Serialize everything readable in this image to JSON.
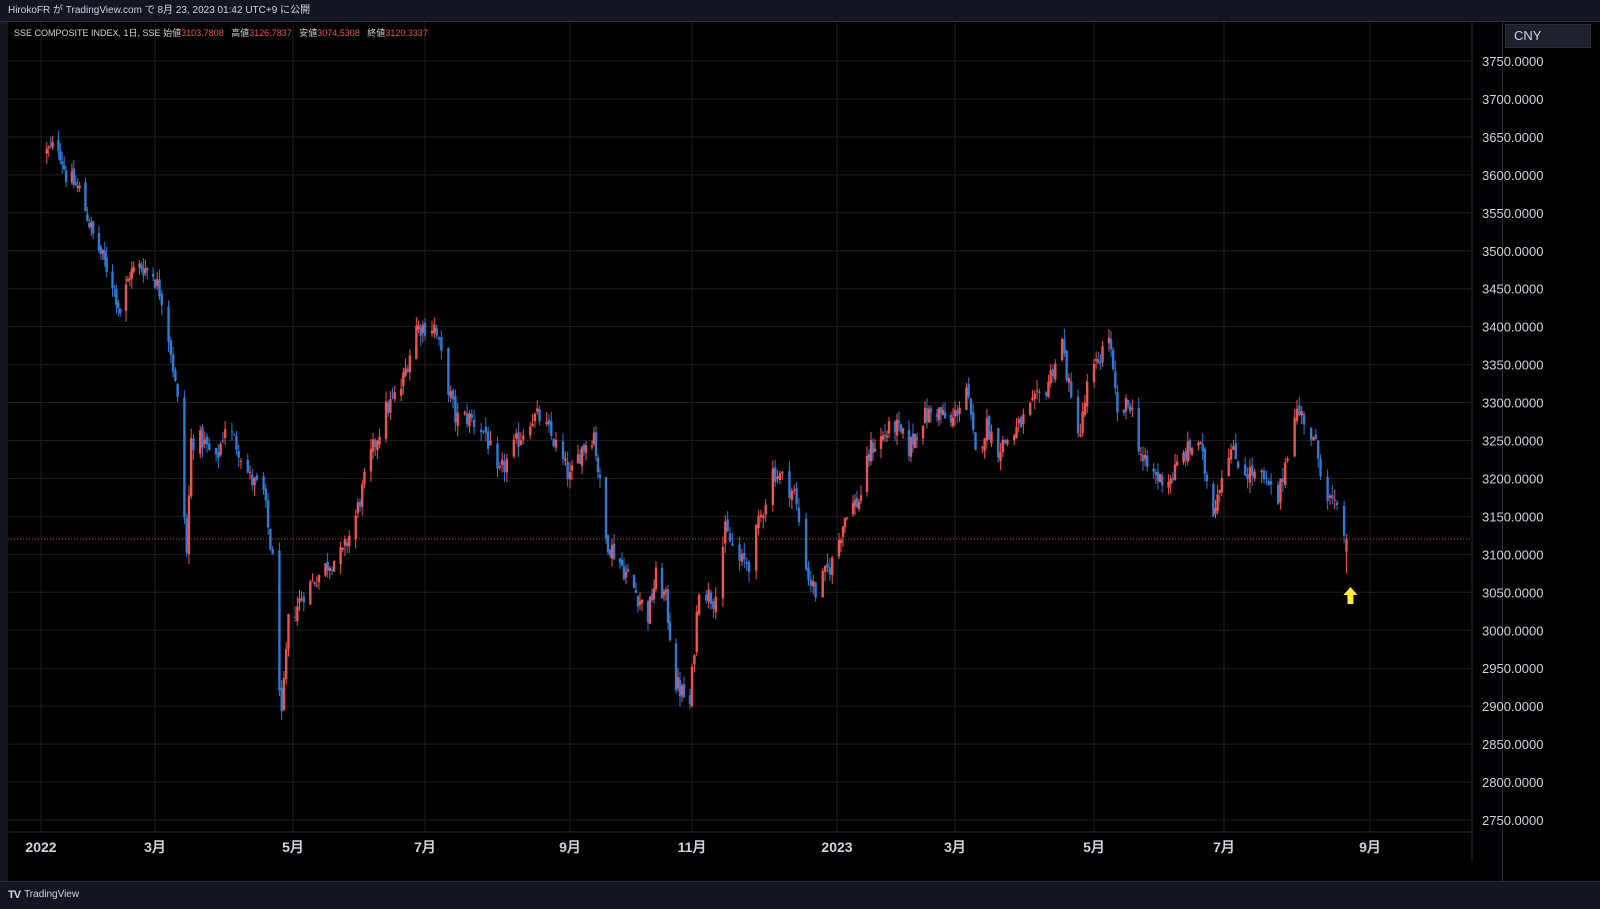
{
  "header": {
    "publish_line": "HirokoFR が TradingView.com で 8月 23, 2023 01:42 UTC+9 に公開"
  },
  "legend": {
    "symbol": "SSE COMPOSITE INDEX, 1日, SSE",
    "open_label": "始値",
    "open_value": "3103.7808",
    "high_label": "高値",
    "high_value": "3126.7837",
    "low_label": "安値",
    "low_value": "3074.5308",
    "close_label": "終値",
    "close_value": "3120.3337"
  },
  "currency_button": "CNY",
  "footer": {
    "brand": "TradingView",
    "brand_mark": "TV"
  },
  "colors": {
    "up": "#ef5350",
    "down": "#2f7bd6",
    "background": "#000000",
    "grid": "#1c1f27",
    "last_price_line": "#ef5350",
    "marker": "#ffeb3b"
  },
  "chart_data": {
    "type": "candlestick",
    "ylim": [
      2720,
      3780
    ],
    "price_ticks": [
      "3750.0000",
      "3700.0000",
      "3650.0000",
      "3600.0000",
      "3550.0000",
      "3500.0000",
      "3450.0000",
      "3400.0000",
      "3350.0000",
      "3300.0000",
      "3250.0000",
      "3200.0000",
      "3150.0000",
      "3100.0000",
      "3050.0000",
      "3000.0000",
      "2950.0000",
      "2900.0000",
      "2850.0000",
      "2800.0000",
      "2750.0000"
    ],
    "time_ticks": [
      "2022",
      "3月",
      "5月",
      "7月",
      "9月",
      "11月",
      "2023",
      "3月",
      "5月",
      "7月",
      "9月"
    ],
    "last_close": 3120.3337,
    "marker": "up-arrow-below-last-bar",
    "path": [
      [
        "2022-01-04",
        3630
      ],
      [
        "2022-01-10",
        3640
      ],
      [
        "2022-01-14",
        3600
      ],
      [
        "2022-01-21",
        3580
      ],
      [
        "2022-01-28",
        3520
      ],
      [
        "2022-02-07",
        3460
      ],
      [
        "2022-02-11",
        3420
      ],
      [
        "2022-02-16",
        3470
      ],
      [
        "2022-02-22",
        3480
      ],
      [
        "2022-02-28",
        3470
      ],
      [
        "2022-03-04",
        3440
      ],
      [
        "2022-03-08",
        3370
      ],
      [
        "2022-03-11",
        3300
      ],
      [
        "2022-03-15",
        3100
      ],
      [
        "2022-03-17",
        3250
      ],
      [
        "2022-03-22",
        3250
      ],
      [
        "2022-03-28",
        3220
      ],
      [
        "2022-04-01",
        3270
      ],
      [
        "2022-04-07",
        3240
      ],
      [
        "2022-04-12",
        3200
      ],
      [
        "2022-04-18",
        3180
      ],
      [
        "2022-04-22",
        3090
      ],
      [
        "2022-04-26",
        2880
      ],
      [
        "2022-04-29",
        3010
      ],
      [
        "2022-05-06",
        3050
      ],
      [
        "2022-05-12",
        3070
      ],
      [
        "2022-05-18",
        3090
      ],
      [
        "2022-05-24",
        3100
      ],
      [
        "2022-05-30",
        3150
      ],
      [
        "2022-06-06",
        3230
      ],
      [
        "2022-06-13",
        3290
      ],
      [
        "2022-06-20",
        3320
      ],
      [
        "2022-06-27",
        3400
      ],
      [
        "2022-07-05",
        3400
      ],
      [
        "2022-07-08",
        3360
      ],
      [
        "2022-07-14",
        3280
      ],
      [
        "2022-07-20",
        3280
      ],
      [
        "2022-07-27",
        3260
      ],
      [
        "2022-08-01",
        3200
      ],
      [
        "2022-08-08",
        3240
      ],
      [
        "2022-08-15",
        3280
      ],
      [
        "2022-08-19",
        3280
      ],
      [
        "2022-08-25",
        3250
      ],
      [
        "2022-09-01",
        3200
      ],
      [
        "2022-09-07",
        3240
      ],
      [
        "2022-09-13",
        3260
      ],
      [
        "2022-09-19",
        3120
      ],
      [
        "2022-09-26",
        3090
      ],
      [
        "2022-10-10",
        3020
      ],
      [
        "2022-10-14",
        3070
      ],
      [
        "2022-10-19",
        3040
      ],
      [
        "2022-10-24",
        2930
      ],
      [
        "2022-10-31",
        2900
      ],
      [
        "2022-11-04",
        3060
      ],
      [
        "2022-11-10",
        3040
      ],
      [
        "2022-11-15",
        3130
      ],
      [
        "2022-11-21",
        3090
      ],
      [
        "2022-11-25",
        3090
      ],
      [
        "2022-11-30",
        3150
      ],
      [
        "2022-12-05",
        3210
      ],
      [
        "2022-12-09",
        3200
      ],
      [
        "2022-12-14",
        3180
      ],
      [
        "2022-12-20",
        3070
      ],
      [
        "2022-12-23",
        3050
      ],
      [
        "2022-12-30",
        3090
      ],
      [
        "2023-01-06",
        3160
      ],
      [
        "2023-01-12",
        3170
      ],
      [
        "2023-01-18",
        3240
      ],
      [
        "2023-01-30",
        3270
      ],
      [
        "2023-02-06",
        3240
      ],
      [
        "2023-02-13",
        3280
      ],
      [
        "2023-02-20",
        3290
      ],
      [
        "2023-02-27",
        3270
      ],
      [
        "2023-03-06",
        3320
      ],
      [
        "2023-03-10",
        3230
      ],
      [
        "2023-03-15",
        3270
      ],
      [
        "2023-03-20",
        3240
      ],
      [
        "2023-03-27",
        3260
      ],
      [
        "2023-04-03",
        3290
      ],
      [
        "2023-04-10",
        3320
      ],
      [
        "2023-04-17",
        3380
      ],
      [
        "2023-04-21",
        3300
      ],
      [
        "2023-04-25",
        3260
      ],
      [
        "2023-04-28",
        3320
      ],
      [
        "2023-05-08",
        3390
      ],
      [
        "2023-05-12",
        3280
      ],
      [
        "2023-05-18",
        3300
      ],
      [
        "2023-05-24",
        3220
      ],
      [
        "2023-05-31",
        3200
      ],
      [
        "2023-06-06",
        3200
      ],
      [
        "2023-06-12",
        3230
      ],
      [
        "2023-06-19",
        3250
      ],
      [
        "2023-06-26",
        3160
      ],
      [
        "2023-07-03",
        3240
      ],
      [
        "2023-07-10",
        3210
      ],
      [
        "2023-07-17",
        3200
      ],
      [
        "2023-07-24",
        3170
      ],
      [
        "2023-07-31",
        3290
      ],
      [
        "2023-08-04",
        3280
      ],
      [
        "2023-08-09",
        3240
      ],
      [
        "2023-08-14",
        3180
      ],
      [
        "2023-08-17",
        3160
      ],
      [
        "2023-08-22",
        3120
      ]
    ]
  }
}
